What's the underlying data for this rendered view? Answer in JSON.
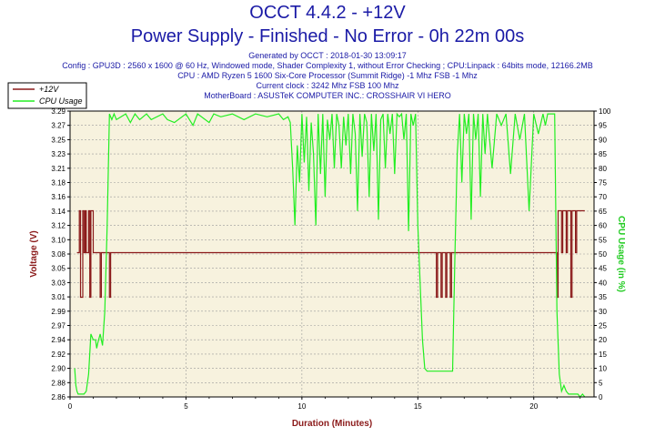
{
  "header": {
    "title": "OCCT 4.4.2 - +12V",
    "subtitle": "Power Supply - Finished - No Error - 0h 22m 00s",
    "info_lines": [
      "Generated by OCCT : 2018-01-30 13:09:17",
      "Config : GPU3D : 2560 x 1600 @ 60 Hz, Windowed mode, Shader Complexity 1, without Error Checking ; CPU:Linpack : 64bits mode, 12166.2MB",
      "CPU : AMD Ryzen 5 1600 Six-Core Processor (Summit Ridge) -1 Mhz FSB -1 Mhz",
      "Current clock : 3242 Mhz FSB 100 Mhz",
      "MotherBoard : ASUSTeK COMPUTER INC.: CROSSHAIR VI HERO"
    ]
  },
  "colors": {
    "voltage": "#8b1a1a",
    "cpu": "#22ee22",
    "plot_bg": "#f7f2de",
    "grid": "#9a9a9a",
    "title": "#1a1aa6"
  },
  "chart_data": {
    "type": "line",
    "xlabel": "Duration (Minutes)",
    "ylabel": "Voltage (V)",
    "y2label": "CPU Usage (in %)",
    "xlim": [
      0,
      22.6
    ],
    "ylim": [
      2.86,
      3.29
    ],
    "y2lim": [
      0,
      100
    ],
    "x_ticks": [
      "0",
      "5",
      "10",
      "15",
      "20"
    ],
    "x_tick_values": [
      0,
      5,
      10,
      15,
      20
    ],
    "y_ticks": [
      "2.86",
      "2.88",
      "2.90",
      "2.92",
      "2.94",
      "2.97",
      "2.99",
      "3.01",
      "3.03",
      "3.05",
      "3.08",
      "3.10",
      "3.12",
      "3.14",
      "3.16",
      "3.18",
      "3.21",
      "3.23",
      "3.25",
      "3.27",
      "3.29"
    ],
    "y2_ticks": [
      "0",
      "5",
      "10",
      "15",
      "20",
      "25",
      "30",
      "35",
      "40",
      "45",
      "50",
      "55",
      "60",
      "65",
      "70",
      "75",
      "80",
      "85",
      "90",
      "95",
      "100"
    ],
    "grid": true,
    "legend_position": "top-left",
    "series": [
      {
        "name": "+12V",
        "axis": "left",
        "x": [
          0.3,
          0.4,
          0.4,
          0.45,
          0.45,
          0.55,
          0.55,
          0.6,
          0.6,
          0.65,
          0.65,
          0.7,
          0.7,
          0.8,
          0.8,
          0.85,
          0.85,
          0.9,
          0.9,
          1.0,
          1.0,
          1.05,
          1.05,
          1.3,
          1.3,
          1.35,
          1.35,
          1.7,
          1.7,
          1.75,
          1.75,
          15.8,
          15.8,
          15.85,
          15.85,
          16.0,
          16.0,
          16.05,
          16.05,
          16.2,
          16.2,
          16.25,
          16.25,
          16.4,
          16.4,
          16.45,
          16.45,
          21.0,
          21.0,
          21.05,
          21.05,
          21.2,
          21.2,
          21.25,
          21.25,
          21.4,
          21.4,
          21.45,
          21.45,
          21.6,
          21.6,
          21.65,
          21.65,
          21.8,
          21.8,
          21.85,
          21.85,
          22.2
        ],
        "y": [
          3.077,
          3.077,
          3.14,
          3.14,
          3.01,
          3.01,
          3.14,
          3.14,
          3.077,
          3.077,
          3.14,
          3.14,
          3.077,
          3.077,
          3.14,
          3.14,
          3.01,
          3.01,
          3.14,
          3.14,
          3.077,
          3.077,
          3.077,
          3.077,
          3.01,
          3.01,
          3.077,
          3.077,
          3.01,
          3.01,
          3.077,
          3.077,
          3.01,
          3.01,
          3.077,
          3.077,
          3.01,
          3.01,
          3.077,
          3.077,
          3.01,
          3.01,
          3.077,
          3.077,
          3.01,
          3.01,
          3.077,
          3.077,
          3.01,
          3.01,
          3.14,
          3.14,
          3.077,
          3.077,
          3.14,
          3.14,
          3.077,
          3.077,
          3.14,
          3.14,
          3.01,
          3.01,
          3.14,
          3.14,
          3.077,
          3.077,
          3.14,
          3.14
        ]
      },
      {
        "name": "CPU Usage",
        "axis": "right",
        "x": [
          0.2,
          0.25,
          0.3,
          0.35,
          0.4,
          0.5,
          0.6,
          0.7,
          0.8,
          0.9,
          1.0,
          1.1,
          1.15,
          1.2,
          1.3,
          1.4,
          1.5,
          1.6,
          1.7,
          1.8,
          1.9,
          2.0,
          2.4,
          2.6,
          2.8,
          3.0,
          3.3,
          3.5,
          4.0,
          4.2,
          4.5,
          5.0,
          5.3,
          5.5,
          6.0,
          6.2,
          6.5,
          7.0,
          7.5,
          8.0,
          8.5,
          9.0,
          9.2,
          9.4,
          9.5,
          9.6,
          9.7,
          9.8,
          9.9,
          10.0,
          10.1,
          10.2,
          10.3,
          10.4,
          10.5,
          10.6,
          10.7,
          10.8,
          10.9,
          11.0,
          11.1,
          11.2,
          11.3,
          11.4,
          11.5,
          11.6,
          11.7,
          11.8,
          11.9,
          12.0,
          12.1,
          12.2,
          12.3,
          12.4,
          12.5,
          12.6,
          12.7,
          12.8,
          12.9,
          13.0,
          13.1,
          13.2,
          13.3,
          13.4,
          13.5,
          13.6,
          13.7,
          13.8,
          13.9,
          14.0,
          14.1,
          14.2,
          14.3,
          14.4,
          14.5,
          14.6,
          14.7,
          14.8,
          14.9,
          15.0,
          15.1,
          15.2,
          15.3,
          15.4,
          15.5,
          15.6,
          15.8,
          16.0,
          16.3,
          16.5,
          16.6,
          16.7,
          16.8,
          16.9,
          17.0,
          17.1,
          17.2,
          17.3,
          17.4,
          17.5,
          17.6,
          17.7,
          17.8,
          17.9,
          18.0,
          18.2,
          18.4,
          18.6,
          18.8,
          19.0,
          19.2,
          19.4,
          19.6,
          19.8,
          20.0,
          20.2,
          20.4,
          20.5,
          20.6,
          20.7,
          20.8,
          20.9,
          21.0,
          21.1,
          21.2,
          21.3,
          21.4,
          21.5,
          21.6,
          21.7,
          21.8,
          21.9,
          22.0,
          22.1,
          22.2
        ],
        "y": [
          10,
          4,
          2,
          1,
          1,
          1,
          1,
          2,
          8,
          22,
          20,
          20,
          17,
          19,
          22,
          18,
          30,
          60,
          99,
          97,
          99,
          97,
          99,
          96,
          99,
          97,
          99,
          97,
          99,
          97,
          96,
          99,
          95,
          99,
          96,
          99,
          98,
          99,
          97,
          99,
          98,
          99,
          97,
          98,
          96,
          80,
          60,
          88,
          75,
          99,
          82,
          98,
          72,
          96,
          85,
          60,
          99,
          78,
          99,
          70,
          97,
          90,
          99,
          80,
          99,
          95,
          80,
          98,
          88,
          99,
          78,
          99,
          92,
          65,
          99,
          84,
          99,
          96,
          70,
          99,
          86,
          99,
          62,
          97,
          99,
          80,
          99,
          92,
          99,
          78,
          99,
          98,
          99,
          90,
          99,
          58,
          99,
          95,
          99,
          60,
          40,
          20,
          10,
          9,
          9,
          9,
          9,
          9,
          9,
          9,
          50,
          85,
          99,
          75,
          99,
          92,
          99,
          62,
          99,
          90,
          99,
          70,
          99,
          85,
          99,
          80,
          99,
          95,
          99,
          78,
          99,
          90,
          99,
          65,
          99,
          92,
          99,
          95,
          99,
          99,
          99,
          99,
          30,
          8,
          2,
          4,
          2,
          1,
          1,
          1,
          1,
          1,
          0,
          1,
          0
        ]
      }
    ]
  }
}
